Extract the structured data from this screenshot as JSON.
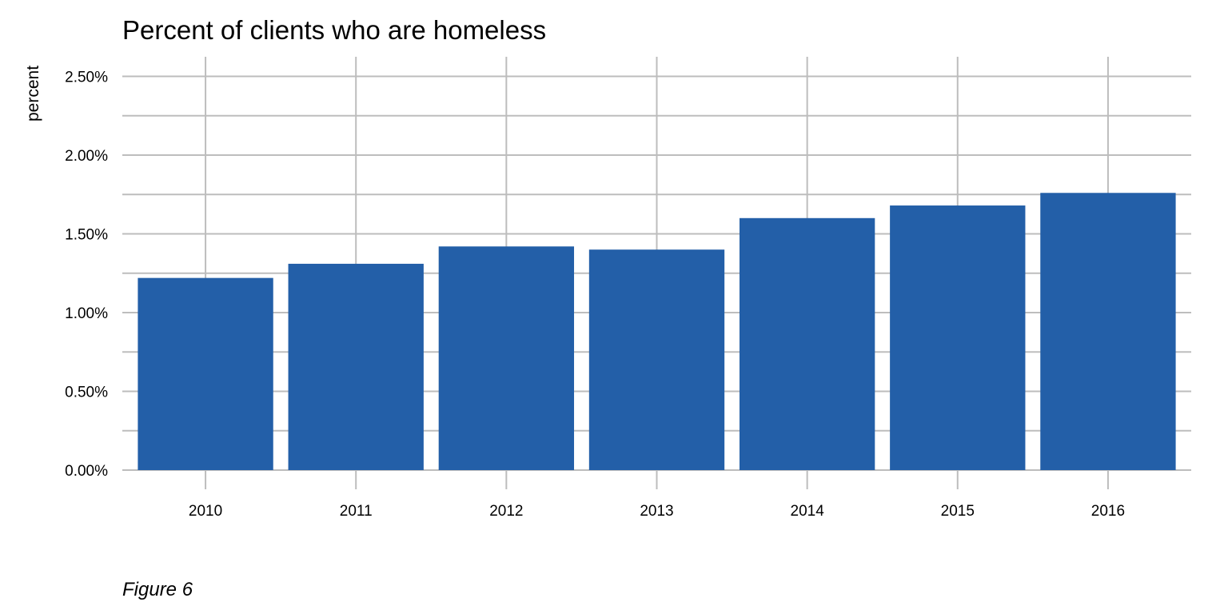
{
  "chart_data": {
    "type": "bar",
    "title": "Percent of clients who are homeless",
    "xlabel": "",
    "ylabel": "percent",
    "categories": [
      "2010",
      "2011",
      "2012",
      "2013",
      "2014",
      "2015",
      "2016"
    ],
    "values": [
      1.22,
      1.31,
      1.42,
      1.4,
      1.6,
      1.68,
      1.76
    ],
    "ylim": [
      0,
      2.6
    ],
    "yticks": [
      0,
      0.5,
      1.0,
      1.5,
      2.0,
      2.5
    ],
    "ytick_labels": [
      "0.00%",
      "0.50%",
      "1.00%",
      "1.50%",
      "2.00%",
      "2.50%"
    ],
    "yminor_ticks": [
      0.25,
      0.75,
      1.25,
      1.75,
      2.25
    ],
    "grid": true,
    "legend": "none",
    "bar_color": "#235FA8",
    "grid_color": "#BDBDBD"
  },
  "caption": "Figure 6"
}
